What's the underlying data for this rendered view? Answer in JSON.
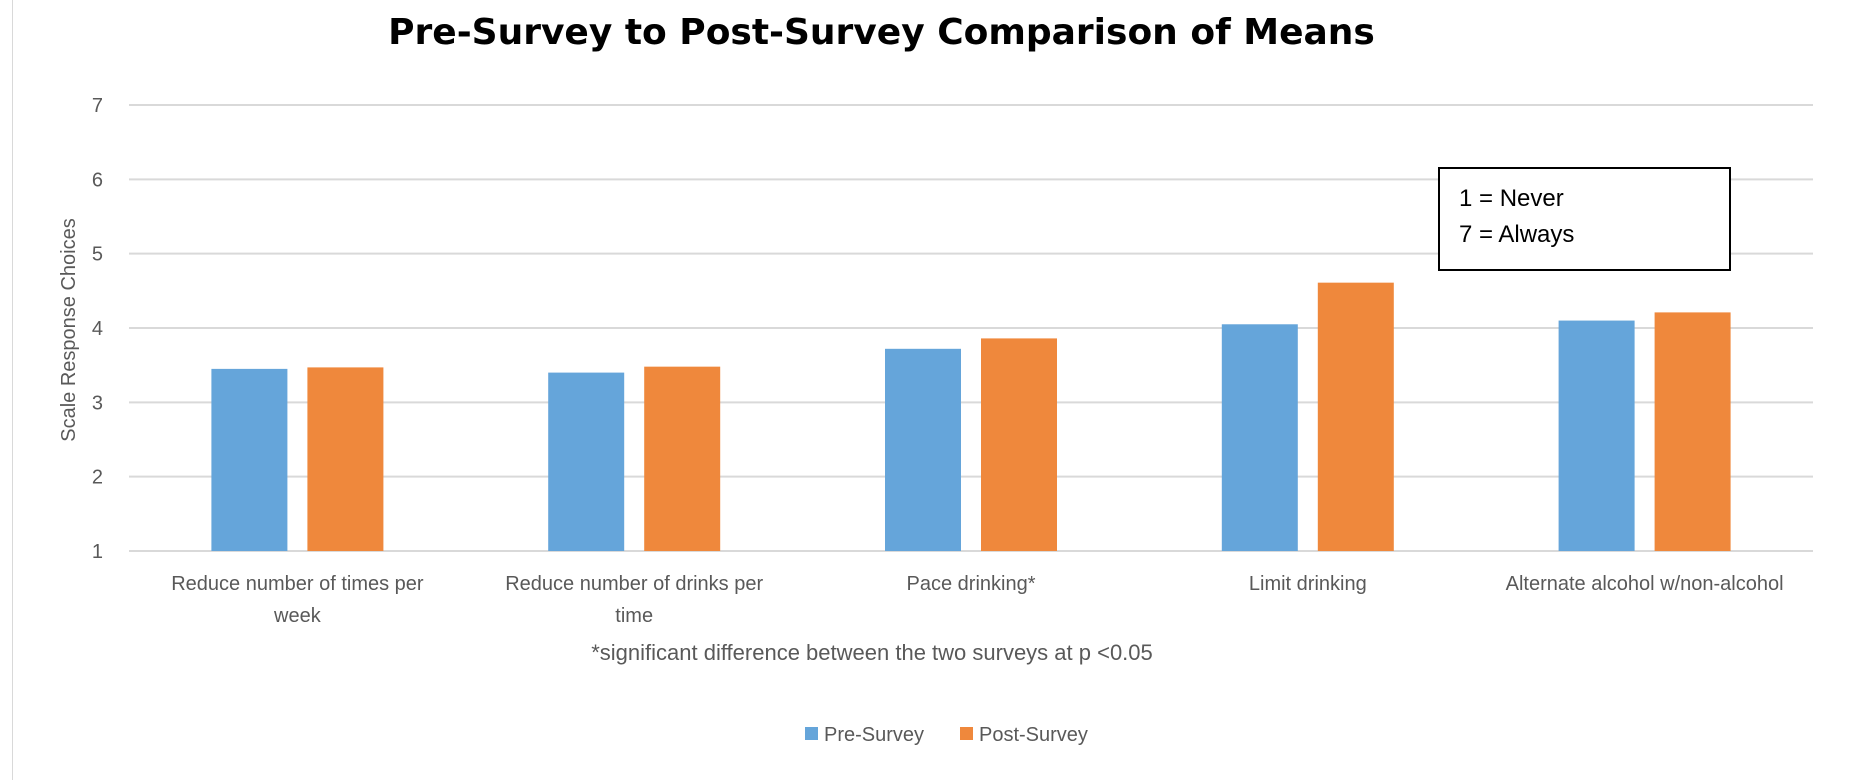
{
  "chart_data": {
    "type": "bar",
    "title": "Pre-Survey to Post-Survey Comparison of Means",
    "ylabel": "Scale Response Choices",
    "xlabel": "",
    "ylim": [
      1,
      7
    ],
    "yticks": [
      "1",
      "2",
      "3",
      "4",
      "5",
      "6",
      "7"
    ],
    "grid": true,
    "legend_position": "bottom",
    "categories": [
      [
        "Reduce number of times per",
        "week"
      ],
      [
        "Reduce number of drinks per",
        "time"
      ],
      [
        "Pace drinking*"
      ],
      [
        "Limit drinking"
      ],
      [
        "Alternate alcohol w/non-alcohol"
      ]
    ],
    "series": [
      {
        "name": "Pre-Survey",
        "color": "#65a5da",
        "values": [
          3.45,
          3.4,
          3.72,
          4.05,
          4.1
        ]
      },
      {
        "name": "Post-Survey",
        "color": "#ef883c",
        "values": [
          3.47,
          3.48,
          3.86,
          4.61,
          4.21
        ]
      }
    ],
    "annotations": {
      "note": "*significant difference between the two surveys at p <0.05",
      "scale_box": [
        "1 = Never",
        "7 = Always"
      ]
    }
  }
}
